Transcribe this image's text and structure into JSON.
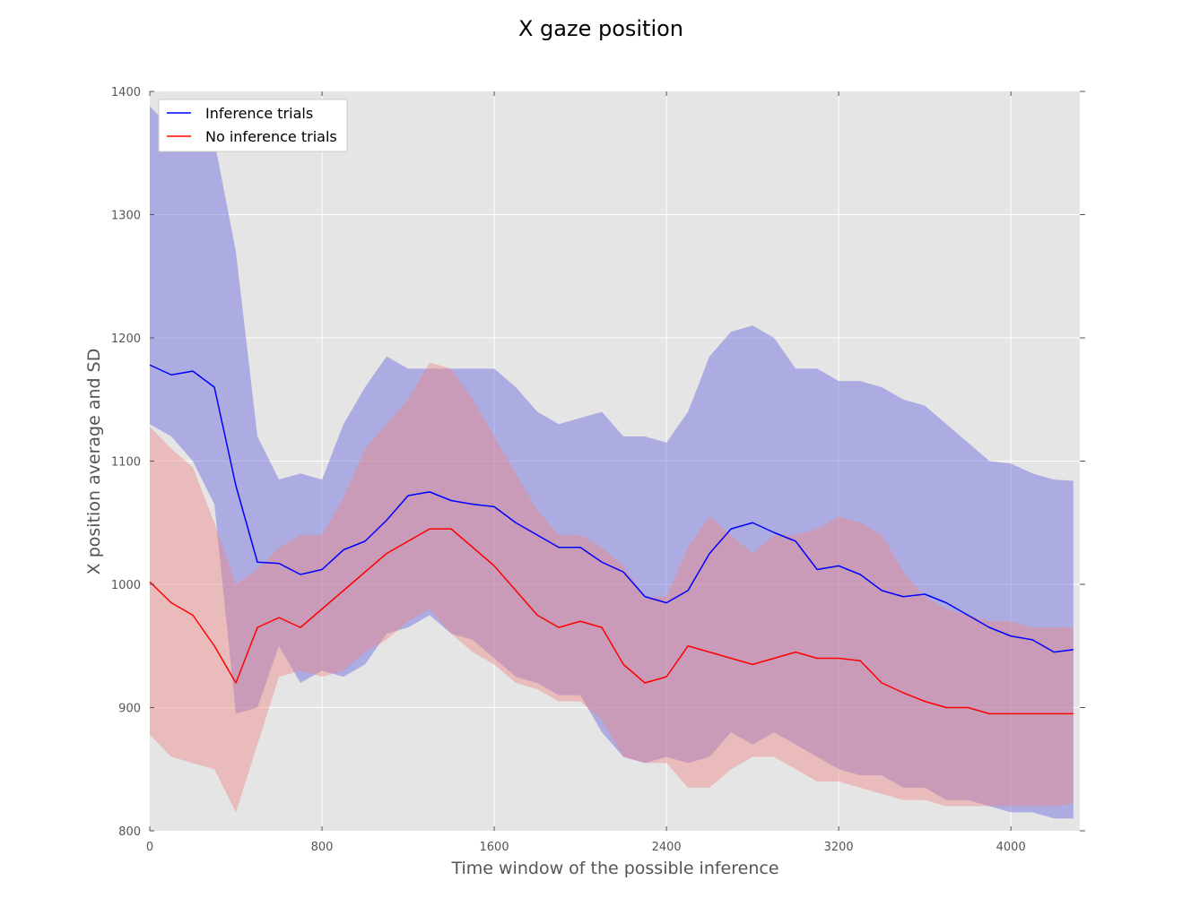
{
  "chart_data": {
    "type": "line",
    "title": "X gaze position",
    "xlabel": "Time window of the possible inference",
    "ylabel": "X position average and SD",
    "xlim": [
      0,
      4320
    ],
    "ylim": [
      800,
      1400
    ],
    "xticks": [
      0,
      800,
      1600,
      2400,
      3200,
      4000
    ],
    "yticks": [
      800,
      900,
      1000,
      1100,
      1200,
      1300,
      1400
    ],
    "grid": true,
    "legend_position": "top-left",
    "background": "#e5e5e5",
    "series": [
      {
        "name": "Inference trials",
        "color": "#0000ff",
        "band_color": "#6666dd",
        "x": [
          0,
          100,
          200,
          300,
          400,
          500,
          600,
          700,
          800,
          900,
          1000,
          1100,
          1200,
          1300,
          1400,
          1500,
          1600,
          1700,
          1800,
          1900,
          2000,
          2100,
          2200,
          2300,
          2400,
          2500,
          2600,
          2700,
          2800,
          2900,
          3000,
          3100,
          3200,
          3300,
          3400,
          3500,
          3600,
          3700,
          3800,
          3900,
          4000,
          4100,
          4200,
          4290
        ],
        "mean": [
          1178,
          1170,
          1173,
          1160,
          1080,
          1018,
          1017,
          1008,
          1012,
          1028,
          1035,
          1052,
          1072,
          1075,
          1068,
          1065,
          1063,
          1050,
          1040,
          1030,
          1030,
          1018,
          1010,
          990,
          985,
          995,
          1025,
          1045,
          1050,
          1042,
          1035,
          1012,
          1015,
          1008,
          995,
          990,
          992,
          985,
          975,
          965,
          958,
          955,
          945,
          947
        ],
        "upper": [
          1388,
          1370,
          1362,
          1360,
          1270,
          1120,
          1085,
          1090,
          1085,
          1130,
          1160,
          1185,
          1175,
          1175,
          1175,
          1175,
          1175,
          1160,
          1140,
          1130,
          1135,
          1140,
          1120,
          1120,
          1115,
          1140,
          1185,
          1205,
          1210,
          1200,
          1175,
          1175,
          1165,
          1165,
          1160,
          1150,
          1145,
          1130,
          1115,
          1100,
          1098,
          1090,
          1085,
          1084
        ],
        "lower": [
          1130,
          1120,
          1100,
          1065,
          895,
          900,
          950,
          920,
          930,
          925,
          935,
          960,
          965,
          975,
          960,
          955,
          940,
          925,
          920,
          910,
          910,
          880,
          860,
          855,
          860,
          855,
          860,
          880,
          870,
          880,
          870,
          860,
          850,
          845,
          845,
          835,
          835,
          825,
          825,
          820,
          815,
          815,
          810,
          810
        ]
      },
      {
        "name": "No inference trials",
        "color": "#ff0000",
        "band_color": "#ee8888",
        "x": [
          0,
          100,
          200,
          300,
          400,
          500,
          600,
          700,
          800,
          900,
          1000,
          1100,
          1200,
          1300,
          1400,
          1500,
          1600,
          1700,
          1800,
          1900,
          2000,
          2100,
          2200,
          2300,
          2400,
          2500,
          2600,
          2700,
          2800,
          2900,
          3000,
          3100,
          3200,
          3300,
          3400,
          3500,
          3600,
          3700,
          3800,
          3900,
          4000,
          4100,
          4200,
          4290
        ],
        "mean": [
          1002,
          985,
          975,
          950,
          920,
          965,
          973,
          965,
          980,
          995,
          1010,
          1025,
          1035,
          1045,
          1045,
          1030,
          1015,
          995,
          975,
          965,
          970,
          965,
          935,
          920,
          925,
          950,
          945,
          940,
          935,
          940,
          945,
          940,
          940,
          938,
          920,
          912,
          905,
          900,
          900,
          895,
          895,
          895,
          895,
          895
        ],
        "upper": [
          1128,
          1110,
          1095,
          1050,
          1000,
          1012,
          1030,
          1040,
          1040,
          1070,
          1110,
          1130,
          1150,
          1180,
          1175,
          1150,
          1120,
          1090,
          1060,
          1040,
          1040,
          1030,
          1015,
          990,
          990,
          1030,
          1055,
          1040,
          1025,
          1040,
          1040,
          1045,
          1055,
          1050,
          1040,
          1010,
          990,
          980,
          975,
          970,
          970,
          965,
          965,
          965
        ],
        "lower": [
          878,
          860,
          855,
          850,
          815,
          870,
          925,
          930,
          925,
          930,
          945,
          955,
          970,
          980,
          960,
          945,
          935,
          920,
          915,
          905,
          905,
          890,
          860,
          855,
          855,
          835,
          835,
          850,
          860,
          860,
          850,
          840,
          840,
          835,
          830,
          825,
          825,
          820,
          820,
          820,
          820,
          820,
          820,
          822
        ]
      }
    ]
  }
}
